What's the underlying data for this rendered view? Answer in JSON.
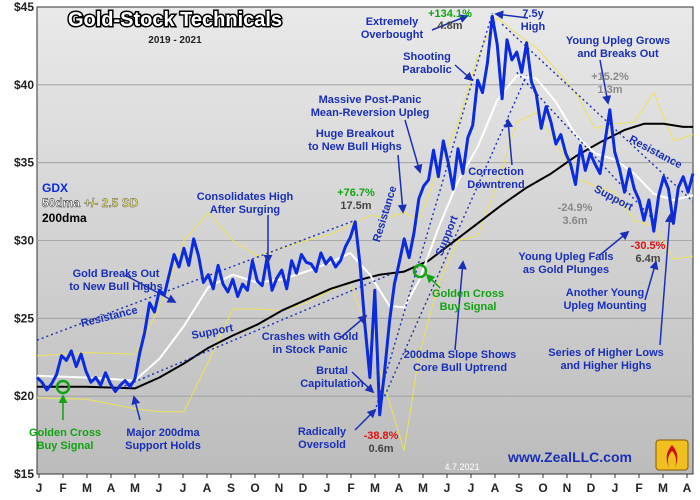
{
  "chart_data": {
    "type": "line",
    "title": "Gold-Stock Technicals",
    "subtitle": "2019 - 2021",
    "y_ticks": [
      "$15",
      "$20",
      "$25",
      "$30",
      "$35",
      "$40",
      "$45"
    ],
    "y_values": [
      15,
      20,
      25,
      30,
      35,
      40,
      45
    ],
    "ylim": [
      15,
      45
    ],
    "x_ticks": [
      "J",
      "F",
      "M",
      "A",
      "M",
      "J",
      "J",
      "A",
      "S",
      "O",
      "N",
      "D",
      "J",
      "F",
      "M",
      "A",
      "M",
      "J",
      "J",
      "A",
      "S",
      "O",
      "N",
      "D",
      "J",
      "F",
      "M",
      "A"
    ],
    "legend": {
      "line1": "GDX",
      "line2_a": "50dma",
      "line2_b": "+/- 2.5 SD",
      "line3": "200dma"
    },
    "series": [
      {
        "name": "GDX",
        "color": "#0a2be0",
        "points": [
          [
            0,
            21.2
          ],
          [
            1,
            20.9
          ],
          [
            2,
            20.4
          ],
          [
            3,
            20.8
          ],
          [
            4,
            21.4
          ],
          [
            5,
            22.6
          ],
          [
            6,
            22.3
          ],
          [
            7,
            22.9
          ],
          [
            8,
            21.9
          ],
          [
            9,
            22.7
          ],
          [
            10,
            21.6
          ],
          [
            11,
            20.9
          ],
          [
            12,
            21.2
          ],
          [
            13,
            20.7
          ],
          [
            14,
            21.5
          ],
          [
            15,
            20.8
          ],
          [
            16,
            20.3
          ],
          [
            17,
            20.7
          ],
          [
            18,
            21.0
          ],
          [
            19,
            20.6
          ],
          [
            20,
            21.1
          ],
          [
            21,
            22.8
          ],
          [
            22,
            24.1
          ],
          [
            23,
            26.0
          ],
          [
            24,
            25.4
          ],
          [
            25,
            26.8
          ],
          [
            26,
            26.5
          ],
          [
            27,
            27.8
          ],
          [
            28,
            29.1
          ],
          [
            29,
            28.3
          ],
          [
            30,
            29.5
          ],
          [
            31,
            28.4
          ],
          [
            32,
            30.1
          ],
          [
            33,
            29.0
          ],
          [
            34,
            27.3
          ],
          [
            35,
            27.8
          ],
          [
            36,
            26.9
          ],
          [
            37,
            28.4
          ],
          [
            38,
            27.2
          ],
          [
            39,
            26.7
          ],
          [
            40,
            27.5
          ],
          [
            41,
            26.4
          ],
          [
            42,
            27.2
          ],
          [
            43,
            26.8
          ],
          [
            44,
            28.7
          ],
          [
            45,
            27.4
          ],
          [
            46,
            27.1
          ],
          [
            47,
            28.9
          ],
          [
            48,
            26.8
          ],
          [
            49,
            27.6
          ],
          [
            50,
            28.1
          ],
          [
            51,
            26.9
          ],
          [
            52,
            28.7
          ],
          [
            53,
            27.9
          ],
          [
            54,
            29.1
          ],
          [
            55,
            28.6
          ],
          [
            56,
            28.5
          ],
          [
            57,
            28.0
          ],
          [
            58,
            29.2
          ],
          [
            59,
            28.5
          ],
          [
            60,
            28.9
          ],
          [
            61,
            28.3
          ],
          [
            62,
            28.7
          ],
          [
            63,
            29.6
          ],
          [
            64,
            30.2
          ],
          [
            65,
            31.2
          ],
          [
            66,
            28.4
          ],
          [
            67,
            24.5
          ],
          [
            68,
            21.2
          ],
          [
            69,
            26.8
          ],
          [
            70,
            18.8
          ],
          [
            71,
            21.6
          ],
          [
            72,
            24.8
          ],
          [
            73,
            27.2
          ],
          [
            74,
            28.6
          ],
          [
            75,
            30.1
          ],
          [
            76,
            28.9
          ],
          [
            77,
            30.5
          ],
          [
            78,
            32.7
          ],
          [
            79,
            33.5
          ],
          [
            80,
            33.9
          ],
          [
            81,
            35.8
          ],
          [
            82,
            34.1
          ],
          [
            83,
            36.4
          ],
          [
            84,
            35.0
          ],
          [
            85,
            33.3
          ],
          [
            86,
            35.9
          ],
          [
            87,
            34.3
          ],
          [
            88,
            36.6
          ],
          [
            89,
            37.4
          ],
          [
            90,
            40.3
          ],
          [
            91,
            39.5
          ],
          [
            92,
            41.4
          ],
          [
            93,
            44.4
          ],
          [
            94,
            42.6
          ],
          [
            95,
            39.1
          ],
          [
            96,
            42.9
          ],
          [
            97,
            41.6
          ],
          [
            98,
            42.1
          ],
          [
            99,
            40.8
          ],
          [
            100,
            42.7
          ],
          [
            101,
            40.2
          ],
          [
            102,
            39.4
          ],
          [
            103,
            37.2
          ],
          [
            104,
            38.6
          ],
          [
            105,
            37.6
          ],
          [
            106,
            36.2
          ],
          [
            107,
            36.8
          ],
          [
            108,
            35.6
          ],
          [
            109,
            34.9
          ],
          [
            110,
            33.6
          ],
          [
            111,
            36.1
          ],
          [
            112,
            34.5
          ],
          [
            113,
            35.6
          ],
          [
            114,
            34.9
          ],
          [
            115,
            34.3
          ],
          [
            116,
            36.3
          ],
          [
            117,
            38.4
          ],
          [
            118,
            35.7
          ],
          [
            119,
            34.6
          ],
          [
            120,
            33.1
          ],
          [
            121,
            34.6
          ],
          [
            122,
            33.3
          ],
          [
            123,
            32.6
          ],
          [
            124,
            31.3
          ],
          [
            125,
            32.6
          ],
          [
            126,
            30.6
          ],
          [
            127,
            32.9
          ],
          [
            128,
            34.1
          ],
          [
            129,
            33.3
          ],
          [
            130,
            31.1
          ],
          [
            131,
            33.4
          ],
          [
            132,
            34.1
          ],
          [
            133,
            33.1
          ],
          [
            134,
            34.3
          ]
        ]
      },
      {
        "name": "50dma",
        "color": "#ffffff",
        "points": [
          [
            0,
            21.3
          ],
          [
            10,
            21.2
          ],
          [
            20,
            21.0
          ],
          [
            25,
            22.4
          ],
          [
            30,
            24.5
          ],
          [
            35,
            27.0
          ],
          [
            40,
            27.8
          ],
          [
            45,
            27.3
          ],
          [
            50,
            27.5
          ],
          [
            55,
            28.0
          ],
          [
            60,
            28.6
          ],
          [
            64,
            29.2
          ],
          [
            68,
            27.8
          ],
          [
            72,
            25.8
          ],
          [
            75,
            25.7
          ],
          [
            78,
            27.4
          ],
          [
            82,
            30.8
          ],
          [
            86,
            33.8
          ],
          [
            90,
            36.0
          ],
          [
            94,
            39.0
          ],
          [
            98,
            40.6
          ],
          [
            102,
            40.4
          ],
          [
            106,
            38.9
          ],
          [
            110,
            36.8
          ],
          [
            114,
            35.6
          ],
          [
            118,
            35.2
          ],
          [
            122,
            34.3
          ],
          [
            126,
            33.0
          ],
          [
            130,
            32.6
          ],
          [
            134,
            32.9
          ]
        ]
      },
      {
        "name": "200dma",
        "color": "#000000",
        "points": [
          [
            0,
            20.6
          ],
          [
            10,
            20.6
          ],
          [
            20,
            20.5
          ],
          [
            25,
            21.2
          ],
          [
            30,
            22.1
          ],
          [
            35,
            23.1
          ],
          [
            40,
            23.9
          ],
          [
            45,
            24.6
          ],
          [
            50,
            25.5
          ],
          [
            55,
            26.2
          ],
          [
            60,
            26.9
          ],
          [
            65,
            27.4
          ],
          [
            70,
            27.8
          ],
          [
            75,
            28.0
          ],
          [
            80,
            28.7
          ],
          [
            85,
            29.9
          ],
          [
            90,
            31.1
          ],
          [
            95,
            32.3
          ],
          [
            100,
            33.4
          ],
          [
            105,
            34.3
          ],
          [
            110,
            35.4
          ],
          [
            115,
            36.3
          ],
          [
            120,
            37.1
          ],
          [
            124,
            37.5
          ],
          [
            128,
            37.5
          ],
          [
            132,
            37.3
          ],
          [
            134,
            37.3
          ]
        ]
      },
      {
        "name": "+2.5 SD",
        "color": "#ece25a",
        "points": [
          [
            0,
            22.6
          ],
          [
            10,
            22.8
          ],
          [
            20,
            22.7
          ],
          [
            25,
            25.7
          ],
          [
            30,
            30.0
          ],
          [
            35,
            31.8
          ],
          [
            40,
            30.0
          ],
          [
            45,
            29.0
          ],
          [
            50,
            29.5
          ],
          [
            55,
            30.0
          ],
          [
            60,
            30.4
          ],
          [
            64,
            31.0
          ],
          [
            68,
            31.6
          ],
          [
            72,
            31.5
          ],
          [
            75,
            31.8
          ],
          [
            78,
            31.3
          ],
          [
            82,
            34.6
          ],
          [
            86,
            37.6
          ],
          [
            90,
            41.8
          ],
          [
            94,
            44.3
          ],
          [
            98,
            43.3
          ],
          [
            102,
            42.4
          ],
          [
            106,
            41.0
          ],
          [
            110,
            39.5
          ],
          [
            114,
            37.2
          ],
          [
            118,
            37.5
          ],
          [
            122,
            37.6
          ],
          [
            126,
            39.5
          ],
          [
            130,
            36.4
          ],
          [
            134,
            36.8
          ]
        ]
      },
      {
        "name": "-2.5 SD",
        "color": "#ece25a",
        "points": [
          [
            0,
            19.9
          ],
          [
            10,
            19.8
          ],
          [
            20,
            19.2
          ],
          [
            25,
            19.0
          ],
          [
            30,
            19.0
          ],
          [
            35,
            22.2
          ],
          [
            40,
            25.6
          ],
          [
            45,
            25.6
          ],
          [
            50,
            25.5
          ],
          [
            55,
            26.0
          ],
          [
            60,
            26.8
          ],
          [
            64,
            27.3
          ],
          [
            68,
            23.8
          ],
          [
            72,
            19.6
          ],
          [
            75,
            16.5
          ],
          [
            78,
            22.6
          ],
          [
            82,
            27.2
          ],
          [
            86,
            30.0
          ],
          [
            90,
            30.3
          ],
          [
            94,
            33.6
          ],
          [
            98,
            37.6
          ],
          [
            102,
            38.2
          ],
          [
            106,
            36.3
          ],
          [
            110,
            34.0
          ],
          [
            114,
            33.5
          ],
          [
            118,
            33.1
          ],
          [
            122,
            31.3
          ],
          [
            126,
            30.9
          ],
          [
            130,
            28.8
          ],
          [
            134,
            29.0
          ]
        ]
      }
    ],
    "trendlines": [
      {
        "name": "resistance-1",
        "from": [
          0,
          23.6
        ],
        "to": [
          65,
          31.3
        ]
      },
      {
        "name": "support-1",
        "from": [
          16,
          20.4
        ],
        "to": [
          72,
          27.8
        ]
      },
      {
        "name": "resistance-2",
        "from": [
          69,
          19.0
        ],
        "to": [
          93,
          44.6
        ]
      },
      {
        "name": "support-2",
        "from": [
          71,
          20.0
        ],
        "to": [
          100,
          40.6
        ]
      },
      {
        "name": "resistance-3",
        "from": [
          95,
          43.9
        ],
        "to": [
          134,
          32.5
        ]
      },
      {
        "name": "support-3",
        "from": [
          98,
          40.8
        ],
        "to": [
          126,
          31.3
        ]
      }
    ],
    "annotations": {
      "golden_cross_1_a": "Golden Cross",
      "golden_cross_1_b": "Buy Signal",
      "major200_a": "Major 200dma",
      "major200_b": "Support Holds",
      "breaks_out_a": "Gold Breaks Out",
      "breaks_out_b": "to New Bull Highs",
      "resistance_1": "Resistance",
      "support_1": "Support",
      "consolidates_a": "Consolidates High",
      "consolidates_b": "After Surging",
      "gain1_pct": "+76.7%",
      "gain1_days": "17.5m",
      "crashes_a": "Crashes with Gold",
      "crashes_b": "in Stock Panic",
      "brutal_a": "Brutal",
      "brutal_b": "Capitulation",
      "radically_a": "Radically",
      "radically_b": "Oversold",
      "loss1_pct": "-38.8%",
      "loss1_days": "0.6m",
      "massive_a": "Massive Post-Panic",
      "massive_b": "Mean-Reversion Upleg",
      "huge_a": "Huge Breakout",
      "huge_b": "to New Bull Highs",
      "resistance_2": "Resistance",
      "support_2": "Support",
      "golden_cross_2_a": "Golden Cross",
      "golden_cross_2_b": "Buy Signal",
      "slope_a": "200dma Slope Shows",
      "slope_b": "Core Bull Uptrend",
      "gain2_pct": "+134.1%",
      "gain2_days": "4.8m",
      "extreme_a": "Extremely",
      "extreme_b": "Overbought",
      "shooting_a": "Shooting",
      "shooting_b": "Parabolic",
      "high_a": "7.5y",
      "high_b": "High",
      "correction_a": "Correction",
      "correction_b": "Downtrend",
      "loss2_pct": "-24.9%",
      "loss2_days": "3.6m",
      "young_grows_a": "Young Upleg Grows",
      "young_grows_b": "and Breaks Out",
      "gain3_pct": "+15.2%",
      "gain3_days": "1.3m",
      "resistance_3": "Resistance",
      "support_3": "Support",
      "young_fails_a": "Young Upleg Fails",
      "young_fails_b": "as Gold Plunges",
      "loss3_pct": "-30.5%",
      "loss3_days": "6.4m",
      "another_a": "Another Young",
      "another_b": "Upleg Mounting",
      "series_a": "Series of Higher Lows",
      "series_b": "and Higher Highs"
    },
    "date_stamp": "4.7.2021",
    "website": "www.ZealLLC.com"
  },
  "colors": {
    "gdx": "#0a2be0",
    "dma50": "#ffffff",
    "dma200": "#000000",
    "band": "#ece25a",
    "annotation": "#1a2fb8",
    "green": "#12a312",
    "red": "#e01010"
  }
}
